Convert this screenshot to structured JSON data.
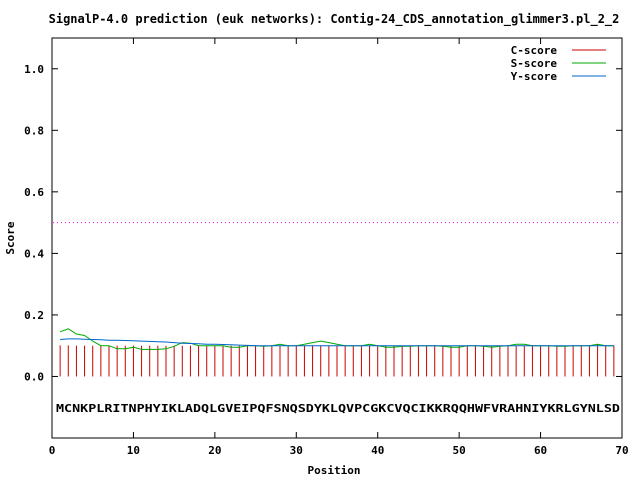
{
  "chart_data": {
    "type": "line",
    "title": "SignalP-4.0 prediction (euk networks): Contig-24_CDS_annotation_glimmer3.pl_2_2",
    "xlabel": "Position",
    "ylabel": "Score",
    "xlim": [
      0,
      70
    ],
    "ylim": [
      -0.2,
      1.1
    ],
    "xticks": [
      0,
      10,
      20,
      30,
      40,
      50,
      60,
      70
    ],
    "yticks": [
      0.0,
      0.2,
      0.4,
      0.6,
      0.8,
      1.0
    ],
    "xtick_labels": [
      "0",
      "10",
      "20",
      "30",
      "40",
      "50",
      "60",
      "70"
    ],
    "ytick_labels": [
      "0.0",
      "0.2",
      "0.4",
      "0.6",
      "0.8",
      "1.0"
    ],
    "threshold": 0.5,
    "threshold_color": "#ff00ff",
    "sequence": "MCNKPLRITNPHYIKLADQLGVEIPQFSNQSDYKLQVPCGKCVQCIKKRQQHWFVRAHNIYKRLGYNLSD",
    "legend_position": "top-right",
    "grid": false,
    "series": [
      {
        "name": "C-score",
        "color": "#cc0000",
        "style": "impulses",
        "x": [
          1,
          2,
          3,
          4,
          5,
          6,
          7,
          8,
          9,
          10,
          11,
          12,
          13,
          14,
          15,
          16,
          17,
          18,
          19,
          20,
          21,
          22,
          23,
          24,
          25,
          26,
          27,
          28,
          29,
          30,
          31,
          32,
          33,
          34,
          35,
          36,
          37,
          38,
          39,
          40,
          41,
          42,
          43,
          44,
          45,
          46,
          47,
          48,
          49,
          50,
          51,
          52,
          53,
          54,
          55,
          56,
          57,
          58,
          59,
          60,
          61,
          62,
          63,
          64,
          65,
          66,
          67,
          68,
          69
        ],
        "values": [
          0.101,
          0.101,
          0.1,
          0.1,
          0.1,
          0.1,
          0.1,
          0.1,
          0.1,
          0.1,
          0.1,
          0.1,
          0.1,
          0.1,
          0.1,
          0.1,
          0.1,
          0.1,
          0.1,
          0.1,
          0.1,
          0.1,
          0.1,
          0.1,
          0.1,
          0.1,
          0.1,
          0.1,
          0.1,
          0.1,
          0.1,
          0.1,
          0.1,
          0.1,
          0.1,
          0.1,
          0.1,
          0.1,
          0.1,
          0.1,
          0.1,
          0.1,
          0.1,
          0.1,
          0.1,
          0.1,
          0.1,
          0.1,
          0.1,
          0.1,
          0.1,
          0.1,
          0.1,
          0.1,
          0.1,
          0.1,
          0.1,
          0.1,
          0.1,
          0.1,
          0.1,
          0.1,
          0.1,
          0.1,
          0.1,
          0.1,
          0.105,
          0.1,
          0.1
        ]
      },
      {
        "name": "S-score",
        "color": "#00aa00",
        "style": "line",
        "x": [
          1,
          2,
          3,
          4,
          5,
          6,
          7,
          8,
          9,
          10,
          11,
          12,
          13,
          14,
          15,
          16,
          17,
          18,
          19,
          20,
          21,
          22,
          23,
          24,
          25,
          26,
          27,
          28,
          29,
          30,
          31,
          32,
          33,
          34,
          35,
          36,
          37,
          38,
          39,
          40,
          41,
          42,
          43,
          44,
          45,
          46,
          47,
          48,
          49,
          50,
          51,
          52,
          53,
          54,
          55,
          56,
          57,
          58,
          59,
          60,
          61,
          62,
          63,
          64,
          65,
          66,
          67,
          68,
          69
        ],
        "values": [
          0.145,
          0.155,
          0.138,
          0.133,
          0.115,
          0.1,
          0.1,
          0.09,
          0.09,
          0.095,
          0.088,
          0.088,
          0.088,
          0.09,
          0.098,
          0.11,
          0.108,
          0.1,
          0.1,
          0.1,
          0.1,
          0.095,
          0.095,
          0.1,
          0.1,
          0.098,
          0.1,
          0.105,
          0.1,
          0.1,
          0.105,
          0.11,
          0.115,
          0.11,
          0.105,
          0.1,
          0.1,
          0.1,
          0.105,
          0.1,
          0.095,
          0.095,
          0.098,
          0.098,
          0.1,
          0.1,
          0.1,
          0.098,
          0.095,
          0.095,
          0.1,
          0.1,
          0.098,
          0.095,
          0.098,
          0.1,
          0.105,
          0.105,
          0.1,
          0.1,
          0.1,
          0.098,
          0.098,
          0.1,
          0.1,
          0.1,
          0.105,
          0.1,
          0.1
        ]
      },
      {
        "name": "Y-score",
        "color": "#0066cc",
        "style": "line",
        "x": [
          1,
          2,
          3,
          4,
          5,
          6,
          7,
          8,
          9,
          10,
          11,
          12,
          13,
          14,
          15,
          16,
          17,
          18,
          19,
          20,
          21,
          22,
          23,
          24,
          25,
          26,
          27,
          28,
          29,
          30,
          31,
          32,
          33,
          34,
          35,
          36,
          37,
          38,
          39,
          40,
          41,
          42,
          43,
          44,
          45,
          46,
          47,
          48,
          49,
          50,
          51,
          52,
          53,
          54,
          55,
          56,
          57,
          58,
          59,
          60,
          61,
          62,
          63,
          64,
          65,
          66,
          67,
          68,
          69
        ],
        "values": [
          0.12,
          0.122,
          0.122,
          0.121,
          0.12,
          0.119,
          0.118,
          0.118,
          0.117,
          0.116,
          0.115,
          0.114,
          0.113,
          0.112,
          0.11,
          0.108,
          0.107,
          0.106,
          0.105,
          0.105,
          0.104,
          0.103,
          0.102,
          0.101,
          0.1,
          0.1,
          0.1,
          0.1,
          0.1,
          0.1,
          0.1,
          0.1,
          0.1,
          0.1,
          0.1,
          0.1,
          0.1,
          0.1,
          0.1,
          0.1,
          0.1,
          0.1,
          0.1,
          0.1,
          0.1,
          0.1,
          0.1,
          0.1,
          0.1,
          0.1,
          0.1,
          0.1,
          0.1,
          0.1,
          0.1,
          0.1,
          0.1,
          0.1,
          0.1,
          0.1,
          0.1,
          0.1,
          0.1,
          0.1,
          0.1,
          0.1,
          0.1,
          0.1,
          0.1
        ]
      }
    ]
  }
}
